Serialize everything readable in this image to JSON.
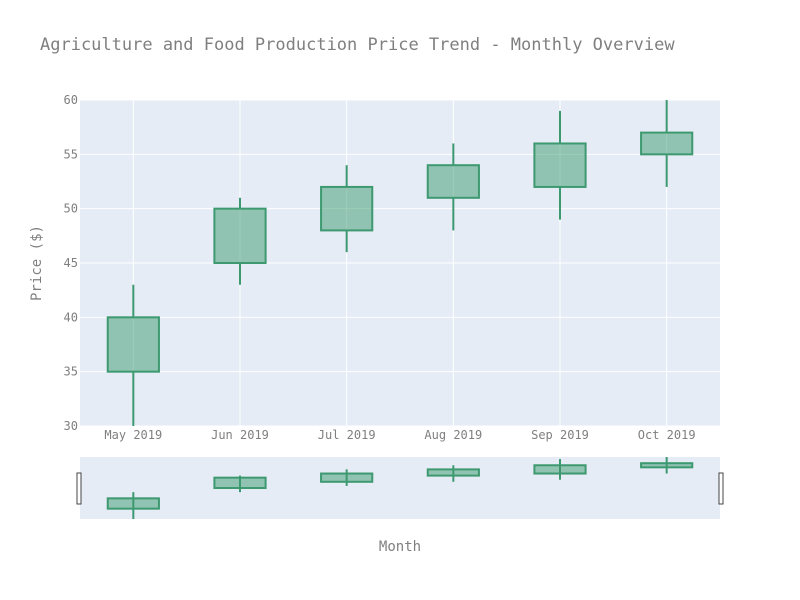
{
  "chart_data": {
    "type": "candlestick",
    "title": "Agriculture and Food Production Price Trend - Monthly Overview",
    "xlabel": "Month",
    "ylabel": "Price ($)",
    "ylim": [
      30,
      60
    ],
    "y_ticks": [
      30,
      35,
      40,
      45,
      50,
      55,
      60
    ],
    "categories": [
      "May 2019",
      "Jun 2019",
      "Jul 2019",
      "Aug 2019",
      "Sep 2019",
      "Oct 2019"
    ],
    "series": [
      {
        "open": [
          35,
          45,
          48,
          51,
          52,
          55
        ],
        "high": [
          43,
          51,
          54,
          56,
          59,
          60
        ],
        "low": [
          30,
          43,
          46,
          48,
          49,
          52
        ],
        "close": [
          40,
          50,
          52,
          54,
          56,
          57
        ]
      }
    ],
    "grid": true,
    "range_slider": true,
    "colors": {
      "increasing_line": "#3d9970",
      "increasing_fill": "rgba(61,153,112,0.5)",
      "plot_bg": "#e5ecf6",
      "grid": "#ffffff",
      "text": "#7f7f7f"
    }
  }
}
